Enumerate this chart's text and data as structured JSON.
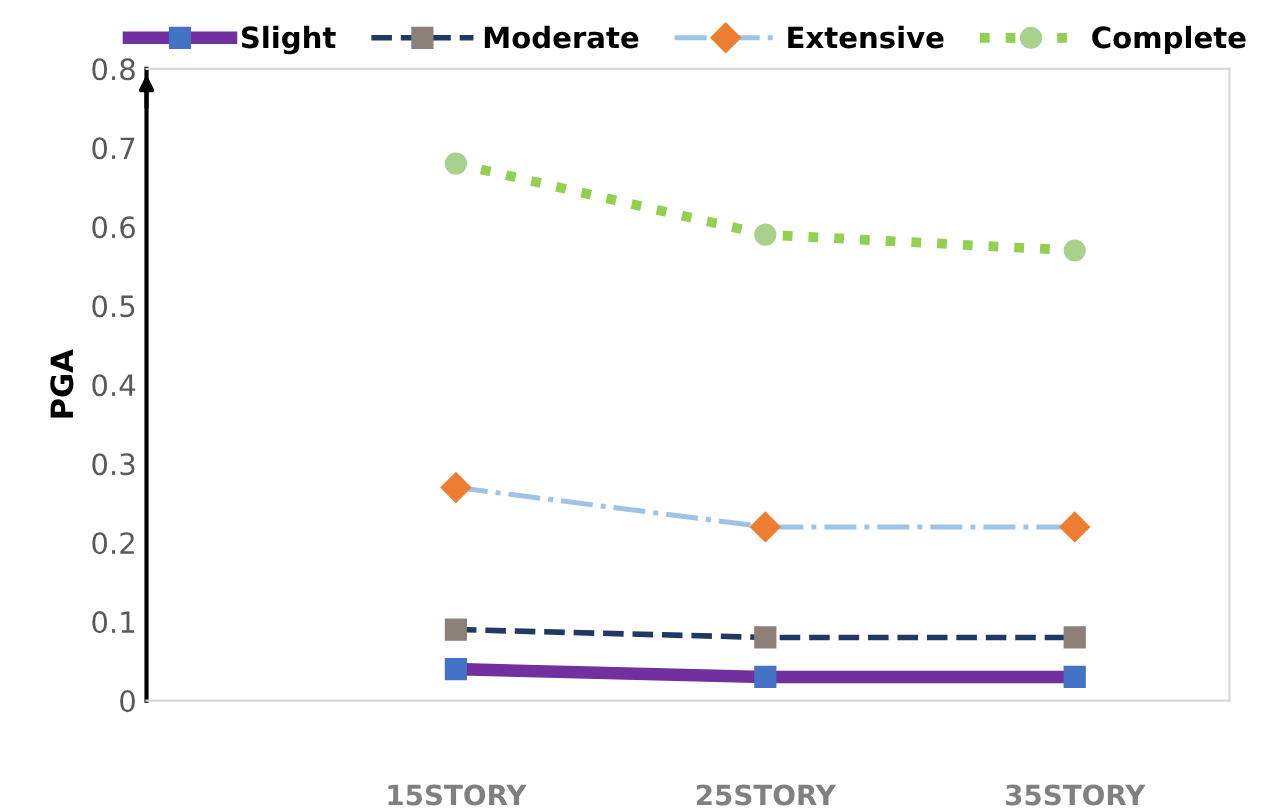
{
  "chart_data": {
    "type": "line",
    "ylabel": "PGA",
    "categories": [
      null,
      "15STORY",
      "25STORY",
      "35STORY"
    ],
    "ylim": [
      0,
      0.8
    ],
    "yticks": [
      0,
      0.1,
      0.2,
      0.3,
      0.4,
      0.5,
      0.6,
      0.7,
      0.8
    ],
    "grid": false,
    "legend": "top",
    "series": [
      {
        "name": "Slight",
        "color": "#7030a0",
        "colors": [
          null,
          "#4472c4",
          "#4472c4",
          "#4472c4"
        ],
        "marker": "square",
        "line_style": "solid",
        "values": [
          null,
          0.04,
          0.03,
          0.03
        ]
      },
      {
        "name": "Moderate",
        "color": "#1f3864",
        "colors": [
          null,
          "#8c8079",
          "#8c8079",
          "#8c8079"
        ],
        "marker": "square",
        "line_style": "dashed",
        "values": [
          null,
          0.09,
          0.08,
          0.08
        ]
      },
      {
        "name": "Extensive",
        "color": "#9dc3e6",
        "colors": [
          null,
          "#ed7d31",
          "#ed7d31",
          "#ed7d31"
        ],
        "marker": "diamond",
        "line_style": "dashdot",
        "values": [
          null,
          0.27,
          0.22,
          0.22
        ]
      },
      {
        "name": "Complete",
        "color": "#92d050",
        "colors": [
          null,
          "#a9d18e",
          "#a9d18e",
          "#a9d18e"
        ],
        "marker": "circle",
        "line_style": "dotted",
        "values": [
          null,
          0.68,
          0.59,
          0.57
        ]
      }
    ]
  }
}
